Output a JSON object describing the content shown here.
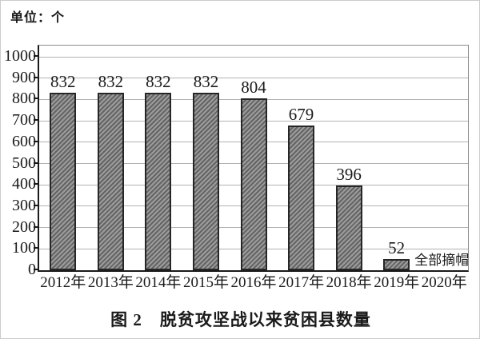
{
  "page": {
    "background": "#ffffff",
    "border_color": "#cccccc"
  },
  "chart_data": {
    "type": "bar",
    "title": "图 2　脱贫攻坚战以来贫困县数量",
    "unit_label": "单位：个",
    "categories": [
      "2012年",
      "2013年",
      "2014年",
      "2015年",
      "2016年",
      "2017年",
      "2018年",
      "2019年",
      "2020年"
    ],
    "values": [
      832,
      832,
      832,
      832,
      804,
      679,
      396,
      52,
      null
    ],
    "data_labels": [
      "832",
      "832",
      "832",
      "832",
      "804",
      "679",
      "396",
      "52",
      ""
    ],
    "annotation": {
      "category_index": 8,
      "text": "全部摘帽"
    },
    "xlabel": "",
    "ylabel": "",
    "ylim": [
      0,
      1050
    ],
    "yticks": [
      0,
      100,
      200,
      300,
      400,
      500,
      600,
      700,
      800,
      900,
      1000
    ],
    "grid": true,
    "legend": "none",
    "bar_style": {
      "fill_light": "#9c9c9c",
      "fill_dark": "#646464",
      "hatch": "diagonal-forward",
      "border": "#262626"
    },
    "axis_color": "#1a1a1a",
    "gridline_color": "#b2b2b2"
  }
}
